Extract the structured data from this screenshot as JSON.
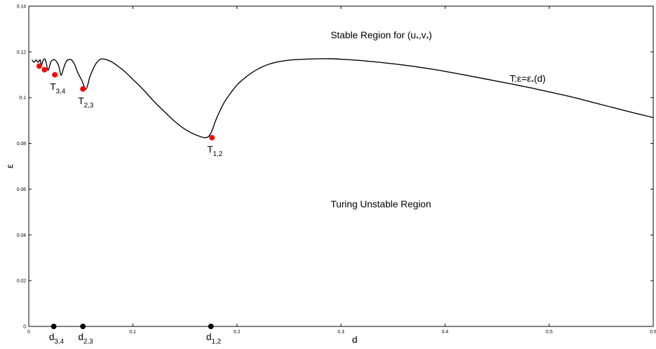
{
  "chart_data": {
    "type": "line",
    "title": "",
    "xlabel": "d",
    "ylabel": "ε",
    "xlim": [
      0,
      0.6
    ],
    "ylim": [
      0,
      0.14
    ],
    "grid": false,
    "x_ticks": [
      {
        "value": 0,
        "label": "0"
      },
      {
        "value": 0.1,
        "label": "0.1"
      },
      {
        "value": 0.2,
        "label": "0.2"
      },
      {
        "value": 0.3,
        "label": "0.3"
      },
      {
        "value": 0.4,
        "label": "0.4"
      },
      {
        "value": 0.5,
        "label": "0.5"
      },
      {
        "value": 0.6,
        "label": "0.6"
      }
    ],
    "y_ticks": [
      {
        "value": 0,
        "label": "0"
      },
      {
        "value": 0.02,
        "label": "0.02"
      },
      {
        "value": 0.04,
        "label": "0.04"
      },
      {
        "value": 0.06,
        "label": "0.06"
      },
      {
        "value": 0.08,
        "label": "0.08"
      },
      {
        "value": 0.1,
        "label": "0.1"
      },
      {
        "value": 0.12,
        "label": "0.12"
      },
      {
        "value": 0.14,
        "label": "0.14"
      }
    ],
    "series": [
      {
        "color": "#000000",
        "x": [
          0.003,
          0.005,
          0.007,
          0.009,
          0.011,
          0.012,
          0.014,
          0.016,
          0.0185,
          0.021,
          0.023,
          0.025,
          0.027,
          0.029,
          0.031,
          0.0335,
          0.036,
          0.038,
          0.041,
          0.044,
          0.047,
          0.051,
          0.055,
          0.059,
          0.064,
          0.069,
          0.074,
          0.079,
          0.085,
          0.092,
          0.1,
          0.11,
          0.12,
          0.13,
          0.14,
          0.15,
          0.16,
          0.17,
          0.175,
          0.18,
          0.185,
          0.19,
          0.2,
          0.21,
          0.22,
          0.23,
          0.24,
          0.25,
          0.27,
          0.29,
          0.3,
          0.32,
          0.35,
          0.38,
          0.4,
          0.42,
          0.45,
          0.48,
          0.5,
          0.52,
          0.55,
          0.58,
          0.6
        ],
        "y": [
          0.1165,
          0.1155,
          0.1165,
          0.1155,
          0.1165,
          0.114,
          0.1165,
          0.1165,
          0.112,
          0.1155,
          0.1165,
          0.1165,
          0.1155,
          0.1135,
          0.1098,
          0.113,
          0.1158,
          0.1166,
          0.1165,
          0.1145,
          0.111,
          0.1075,
          0.1038,
          0.1095,
          0.1145,
          0.1168,
          0.1167,
          0.1158,
          0.114,
          0.1115,
          0.108,
          0.1035,
          0.0985,
          0.094,
          0.0897,
          0.0862,
          0.0838,
          0.0825,
          0.0845,
          0.0905,
          0.0955,
          0.0995,
          0.1055,
          0.1095,
          0.1125,
          0.1145,
          0.1157,
          0.1164,
          0.1169,
          0.117,
          0.1168,
          0.1162,
          0.1148,
          0.113,
          0.1115,
          0.1098,
          0.1072,
          0.1045,
          0.1025,
          0.1005,
          0.097,
          0.0935,
          0.0913
        ]
      }
    ],
    "points": [
      {
        "x": 0.01,
        "y": 0.1138,
        "color": "#ff0000",
        "label": "",
        "sub": ""
      },
      {
        "x": 0.015,
        "y": 0.1122,
        "color": "#ff0000",
        "label": "",
        "sub": ""
      },
      {
        "x": 0.025,
        "y": 0.11,
        "color": "#ff0000",
        "label": "T",
        "sub": "3,4"
      },
      {
        "x": 0.052,
        "y": 0.1038,
        "color": "#ff0000",
        "label": "T",
        "sub": "2,3"
      },
      {
        "x": 0.176,
        "y": 0.0825,
        "color": "#ff0000",
        "label": "T",
        "sub": "1,2"
      },
      {
        "x": 0.024,
        "y": 0,
        "color": "#000000",
        "label": "d",
        "sub": "3,4"
      },
      {
        "x": 0.052,
        "y": 0,
        "color": "#000000",
        "label": "d",
        "sub": "2,3"
      },
      {
        "x": 0.175,
        "y": 0,
        "color": "#000000",
        "label": "d",
        "sub": "1,2"
      }
    ],
    "annotations": [
      {
        "id": "stable",
        "x": 0.29,
        "y": 0.126,
        "text": "Stable Region for (u",
        "sub1": "*",
        "mid": ",v",
        "sub2": "*",
        "end": ")"
      },
      {
        "id": "curve",
        "x": 0.462,
        "y": 0.107,
        "text": "T:ε=ε",
        "sub1": "*",
        "end": "(d)"
      },
      {
        "id": "unstable",
        "x": 0.29,
        "y": 0.052,
        "text": "Turing Unstable Region"
      }
    ]
  }
}
